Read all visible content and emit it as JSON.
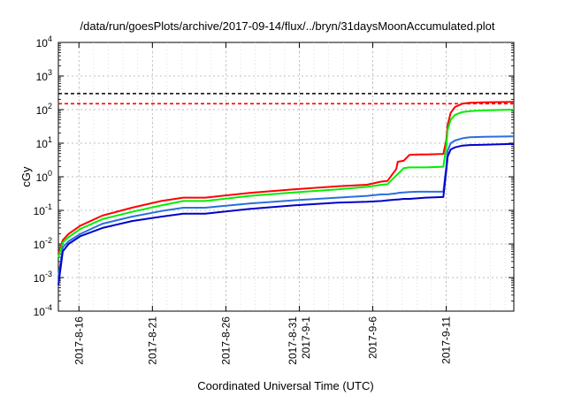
{
  "chart_data": {
    "type": "line",
    "title": "/data/run/goesPlots/archive/2017-09-14/flux/../bryn/31daysMoonAccumulated.plot",
    "xlabel": "Coordinated Universal Time (UTC)",
    "ylabel": "cGy",
    "yscale": "log",
    "ylim": [
      0.0001,
      10000
    ],
    "xlim_days": [
      0,
      31
    ],
    "grid": true,
    "y_ticks": [
      {
        "base": "10",
        "exp": "-4",
        "value": 0.0001
      },
      {
        "base": "10",
        "exp": "-3",
        "value": 0.001
      },
      {
        "base": "10",
        "exp": "-2",
        "value": 0.01
      },
      {
        "base": "10",
        "exp": "-1",
        "value": 0.1
      },
      {
        "base": "10",
        "exp": "0",
        "value": 1
      },
      {
        "base": "10",
        "exp": "1",
        "value": 10
      },
      {
        "base": "10",
        "exp": "2",
        "value": 100
      },
      {
        "base": "10",
        "exp": "3",
        "value": 1000
      },
      {
        "base": "10",
        "exp": "4",
        "value": 10000
      }
    ],
    "x_ticks": [
      {
        "day": 1.4,
        "lines": [
          "2017-8-16"
        ]
      },
      {
        "day": 6.4,
        "lines": [
          "2017-8-21"
        ]
      },
      {
        "day": 11.4,
        "lines": [
          "2017-8-26"
        ]
      },
      {
        "day": 16.4,
        "lines": [
          "2017-8-31",
          "2017-9-1"
        ]
      },
      {
        "day": 21.4,
        "lines": [
          "2017-9-6"
        ]
      },
      {
        "day": 26.4,
        "lines": [
          "2017-9-11"
        ]
      }
    ],
    "reference_lines": [
      {
        "value": 300,
        "color": "#000000"
      },
      {
        "value": 150,
        "color": "#ff0000"
      }
    ],
    "series": [
      {
        "color": "#ff0000",
        "x": [
          0,
          0.3,
          0.7,
          1.5,
          3,
          5,
          7,
          8.5,
          10,
          13,
          16,
          19,
          21,
          22,
          22.4,
          23,
          23.1,
          23.5,
          23.9,
          24.5,
          25,
          26.2,
          26.4,
          26.5,
          26.7,
          27,
          27.5,
          28,
          29,
          31
        ],
        "y": [
          0.005,
          0.013,
          0.02,
          0.035,
          0.07,
          0.12,
          0.19,
          0.24,
          0.24,
          0.33,
          0.42,
          0.52,
          0.58,
          0.72,
          0.75,
          1.7,
          2.8,
          3.0,
          4.5,
          4.6,
          4.6,
          4.8,
          12,
          35,
          80,
          120,
          150,
          160,
          165,
          170
        ]
      },
      {
        "color": "#00ee00",
        "x": [
          0,
          0.3,
          0.7,
          1.5,
          3,
          5,
          7,
          8.5,
          10,
          13,
          16,
          19,
          21,
          22,
          22.4,
          23,
          23.1,
          23.5,
          23.9,
          24.5,
          25,
          26.2,
          26.4,
          26.5,
          26.7,
          27,
          27.5,
          28,
          29,
          31
        ],
        "y": [
          0.004,
          0.011,
          0.016,
          0.028,
          0.055,
          0.09,
          0.14,
          0.19,
          0.19,
          0.27,
          0.34,
          0.42,
          0.5,
          0.58,
          0.6,
          1.1,
          1.2,
          1.8,
          1.9,
          1.9,
          1.9,
          2.0,
          8,
          25,
          50,
          70,
          85,
          90,
          95,
          100
        ]
      },
      {
        "color": "#2a6fdc",
        "x": [
          0,
          0.3,
          0.7,
          1.5,
          3,
          5,
          7,
          8.5,
          10,
          13,
          16,
          19,
          21,
          22,
          22.4,
          23,
          23.1,
          23.5,
          23.9,
          24.5,
          25,
          26.2,
          26.4,
          26.5,
          26.7,
          27,
          27.5,
          28,
          29,
          31
        ],
        "y": [
          0.001,
          0.008,
          0.012,
          0.02,
          0.04,
          0.065,
          0.095,
          0.12,
          0.12,
          0.16,
          0.2,
          0.24,
          0.27,
          0.3,
          0.3,
          0.32,
          0.33,
          0.34,
          0.35,
          0.36,
          0.36,
          0.36,
          2,
          6,
          10,
          12,
          14,
          15,
          15.5,
          16
        ]
      },
      {
        "color": "#0000cc",
        "x": [
          0,
          0.3,
          0.7,
          1.5,
          3,
          5,
          7,
          8.5,
          10,
          13,
          16,
          19,
          21,
          22,
          22.4,
          23,
          23.1,
          23.5,
          23.9,
          24.5,
          25,
          26.2,
          26.4,
          26.5,
          26.7,
          27,
          27.5,
          28,
          29,
          31
        ],
        "y": [
          0.0006,
          0.006,
          0.01,
          0.017,
          0.03,
          0.048,
          0.065,
          0.08,
          0.08,
          0.11,
          0.14,
          0.17,
          0.18,
          0.19,
          0.2,
          0.21,
          0.21,
          0.22,
          0.22,
          0.23,
          0.24,
          0.25,
          1.5,
          4,
          6.5,
          7.5,
          8.5,
          8.8,
          9,
          9.5
        ]
      }
    ]
  }
}
